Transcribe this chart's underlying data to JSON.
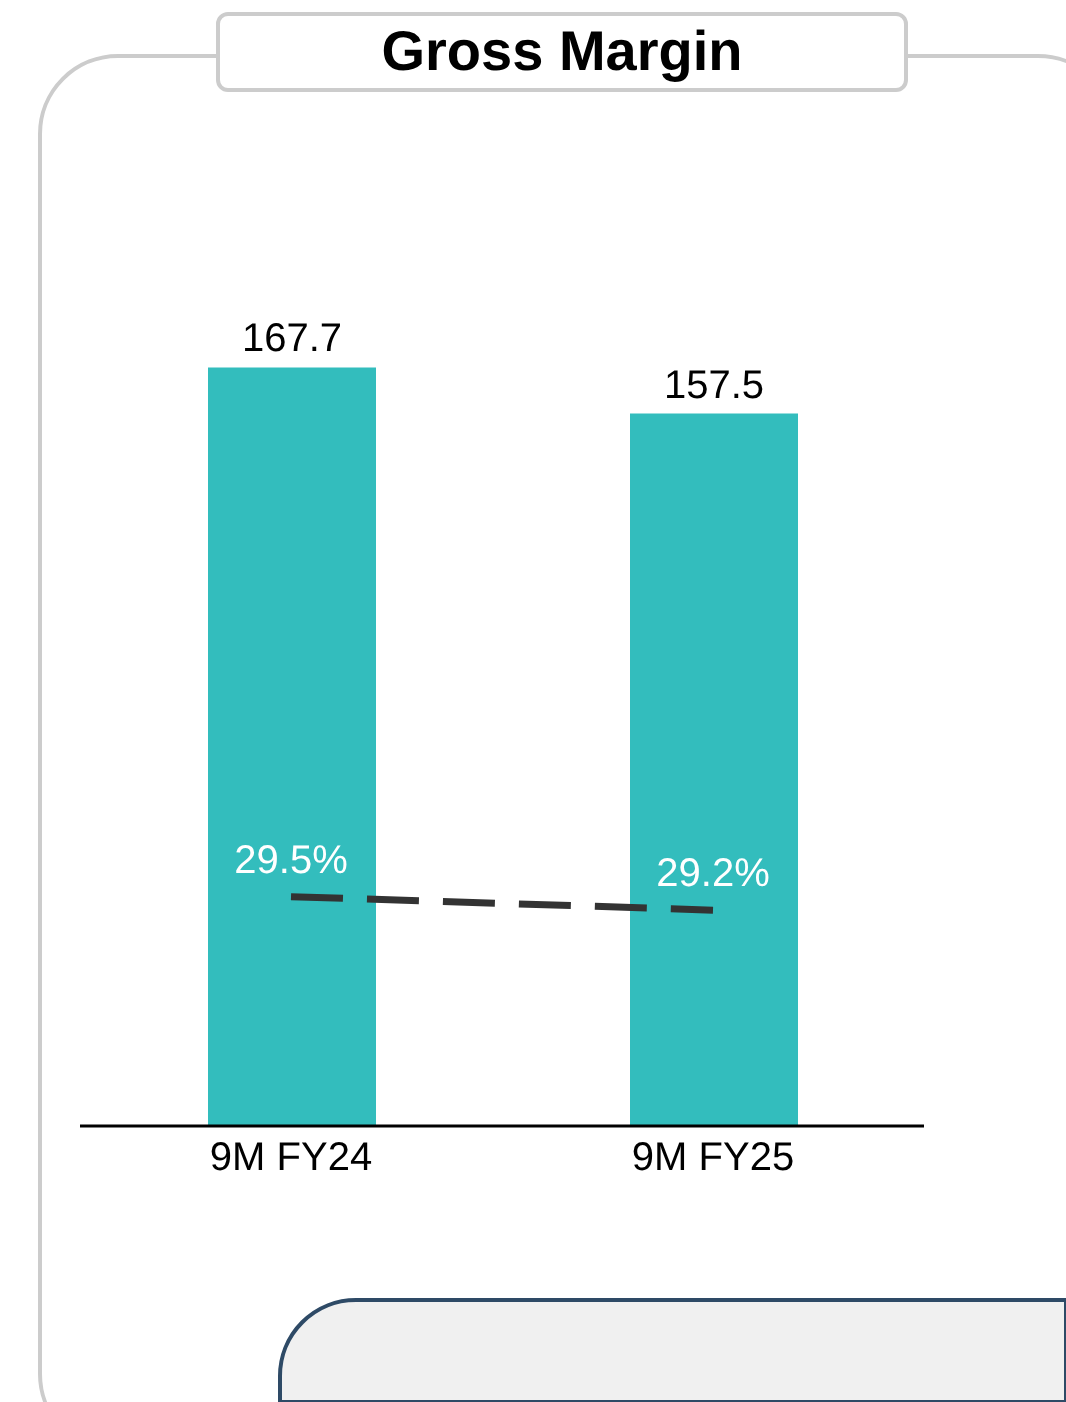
{
  "chart_data": {
    "type": "bar",
    "title": "Gross Margin",
    "categories": [
      "9M FY24",
      "9M FY25"
    ],
    "series": [
      {
        "color": "#33bdbd",
        "values": [
          167.7,
          157.5
        ],
        "value_labels": [
          "167.7",
          "157.5"
        ]
      },
      {
        "type": "line",
        "axis": "y2",
        "color": "#333333",
        "line_style": "dashed",
        "marker": "none",
        "values": [
          29.5,
          29.2
        ],
        "value_labels": [
          "29.5%",
          "29.2%"
        ]
      }
    ],
    "tick_labels": "x",
    "legend": false,
    "grid": false
  }
}
